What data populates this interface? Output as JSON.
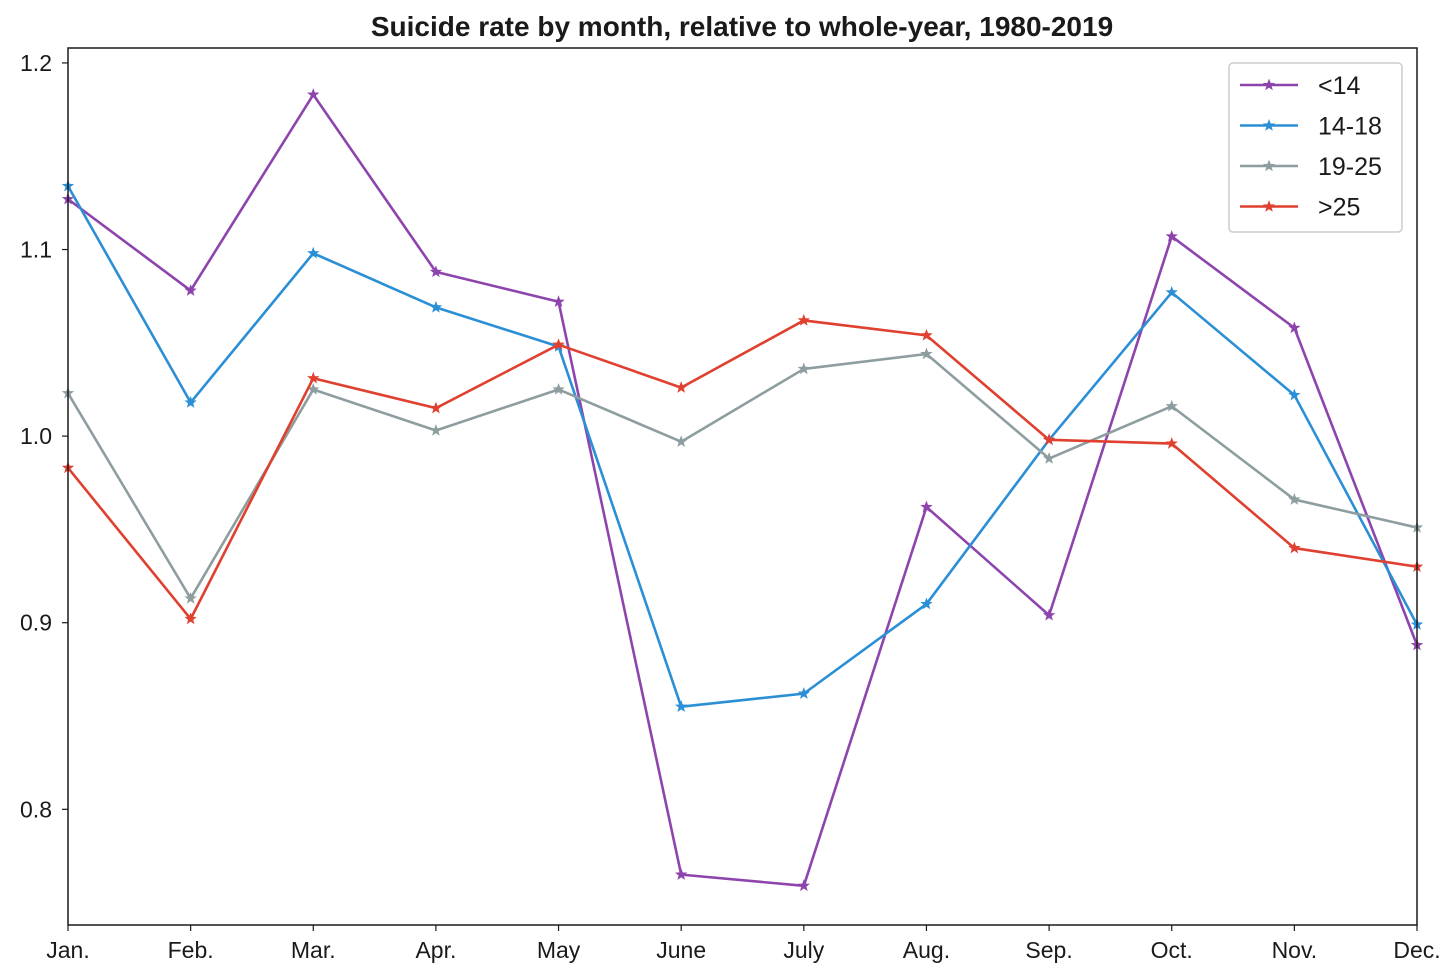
{
  "chart_data": {
    "type": "line",
    "title": "Suicide rate by month, relative to whole-year, 1980-2019",
    "xlabel": "",
    "ylabel": "",
    "categories": [
      "Jan.",
      "Feb.",
      "Mar.",
      "Apr.",
      "May",
      "June",
      "July",
      "Aug.",
      "Sep.",
      "Oct.",
      "Nov.",
      "Dec."
    ],
    "ylim": [
      0.738,
      1.208
    ],
    "yticks": [
      {
        "value": 0.8,
        "label": "0.8"
      },
      {
        "value": 0.9,
        "label": "0.9"
      },
      {
        "value": 1.0,
        "label": "1.0"
      },
      {
        "value": 1.1,
        "label": "1.1"
      },
      {
        "value": 1.2,
        "label": "1.2"
      }
    ],
    "grid": false,
    "legend_position": "top-right",
    "marker": "star",
    "series": [
      {
        "name": "<14",
        "color": "#8e44ad",
        "values": [
          1.127,
          1.078,
          1.183,
          1.088,
          1.072,
          0.765,
          0.759,
          0.962,
          0.904,
          1.107,
          1.058,
          0.888
        ]
      },
      {
        "name": "14-18",
        "color": "#2b8fd6",
        "values": [
          1.134,
          1.018,
          1.098,
          1.069,
          1.048,
          0.855,
          0.862,
          0.91,
          0.998,
          1.077,
          1.022,
          0.899
        ]
      },
      {
        "name": "19-25",
        "color": "#8e9ea0",
        "values": [
          1.023,
          0.913,
          1.025,
          1.003,
          1.025,
          0.997,
          1.036,
          1.044,
          0.988,
          1.016,
          0.966,
          0.951
        ]
      },
      {
        "name": ">25",
        "color": "#e0402f",
        "values": [
          0.983,
          0.902,
          1.031,
          1.015,
          1.049,
          1.026,
          1.062,
          1.054,
          0.998,
          0.996,
          0.94,
          0.93
        ]
      }
    ]
  }
}
